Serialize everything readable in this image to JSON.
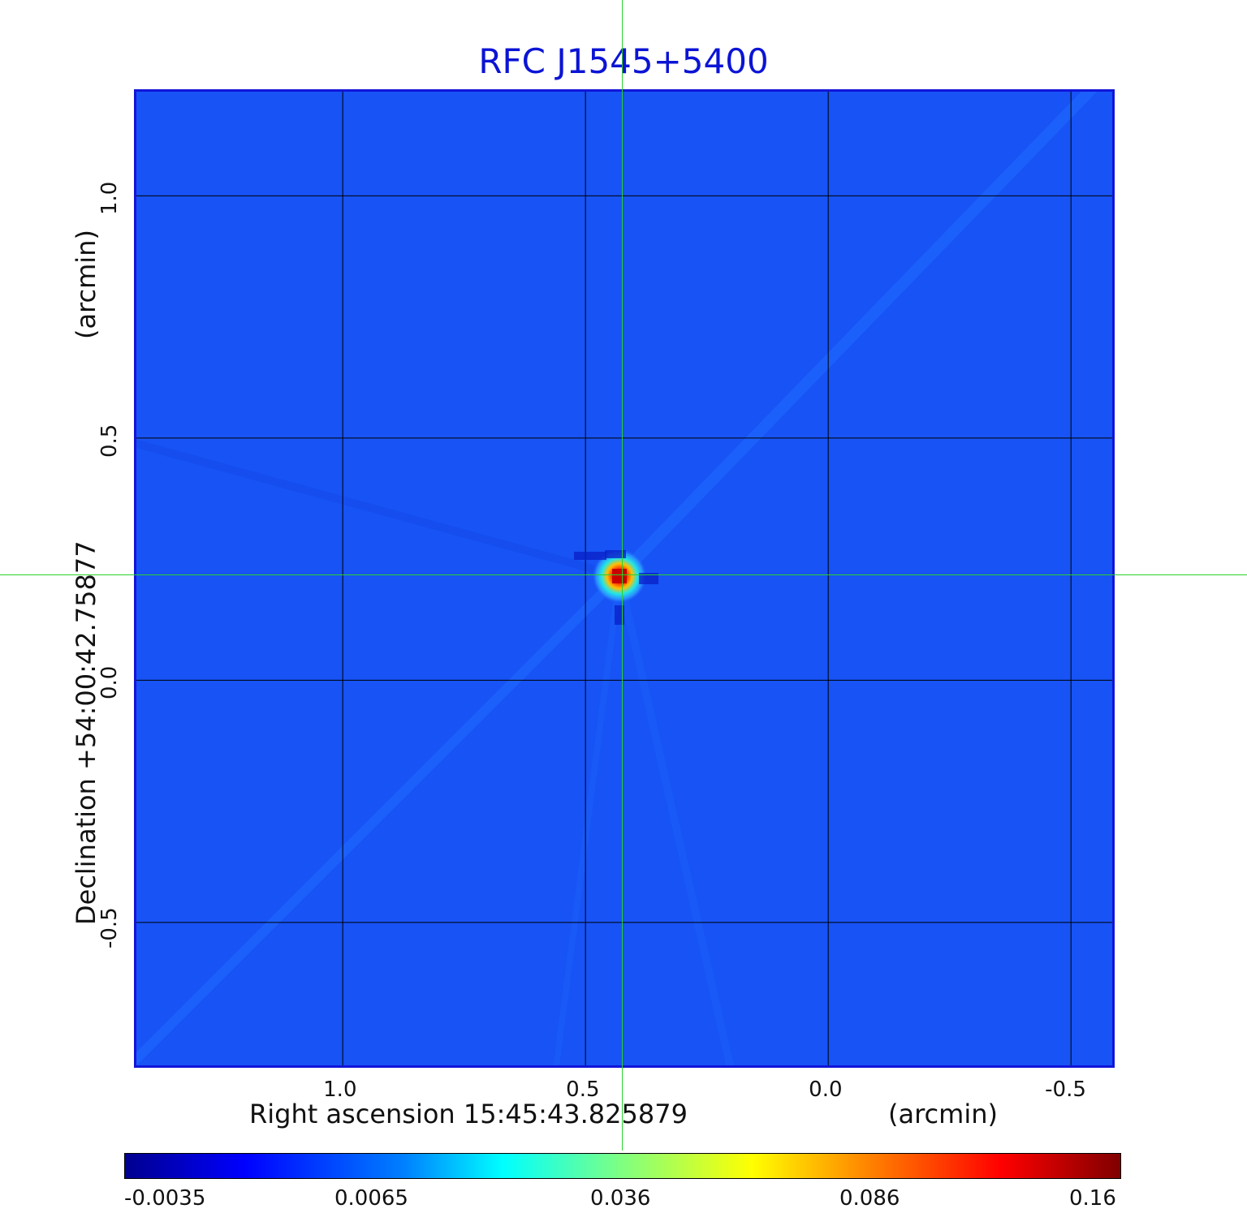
{
  "chart_data": {
    "type": "heatmap",
    "title": "RFC J1545+5400",
    "xlabel": "Right ascension  15:45:43.825879",
    "xunit": "(arcmin)",
    "ylabel": "Declination  +54:00:42.75877",
    "yunit": "(arcmin)",
    "x_ticks": [
      "1.0",
      "0.5",
      "0.0",
      "-0.5"
    ],
    "y_ticks": [
      "1.0",
      "0.5",
      "0.0",
      "-0.5"
    ],
    "x_tick_values": [
      1.0,
      0.5,
      0.0,
      -0.5
    ],
    "y_tick_values": [
      1.0,
      0.5,
      0.0,
      -0.5
    ],
    "xlim": [
      1.425,
      -0.585
    ],
    "ylim": [
      -0.795,
      1.215
    ],
    "grid": true,
    "source_peak": {
      "x": 0.43,
      "y": 0.215
    },
    "colorbar": {
      "labels": [
        "-0.0035",
        "0.0065",
        "0.036",
        "0.086",
        "0.16"
      ],
      "colormap": "jet"
    }
  },
  "colors": {
    "background_level": "#1753f5",
    "title": "#0b14d4",
    "crosshair": "#2ad12a",
    "grid": "#000000"
  }
}
